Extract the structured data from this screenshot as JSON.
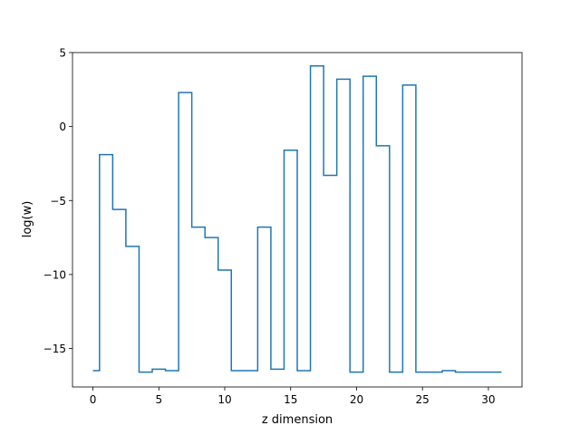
{
  "chart_data": {
    "type": "line",
    "drawstyle": "steps-mid",
    "xlabel": "z dimension",
    "ylabel": "log(w)",
    "xlim": [
      -1.55,
      32.55
    ],
    "ylim": [
      -17.6,
      5.0
    ],
    "xticks": [
      0,
      5,
      10,
      15,
      20,
      25,
      30
    ],
    "yticks": [
      5,
      0,
      -5,
      -10,
      -15
    ],
    "ytick_labels": [
      "5",
      "0",
      "−5",
      "−10",
      "−15"
    ],
    "grid": false,
    "legend": "none",
    "colors": {
      "line": "#1f77b4",
      "axes": "#000000",
      "background": "#ffffff"
    },
    "x": [
      0,
      1,
      2,
      3,
      4,
      5,
      6,
      7,
      8,
      9,
      10,
      11,
      12,
      13,
      14,
      15,
      16,
      17,
      18,
      19,
      20,
      21,
      22,
      23,
      24,
      25,
      26,
      27,
      28,
      29,
      30,
      31
    ],
    "values": [
      -16.5,
      -1.9,
      -5.6,
      -8.1,
      -16.6,
      -16.4,
      -16.5,
      2.3,
      -6.8,
      -7.5,
      -9.7,
      -16.5,
      -16.5,
      -6.8,
      -16.4,
      -1.6,
      -16.5,
      4.1,
      -3.3,
      3.2,
      -16.6,
      3.4,
      -1.3,
      -16.6,
      2.8,
      -16.6,
      -16.6,
      -16.5,
      -16.6,
      -16.6,
      -16.6,
      -16.6
    ]
  }
}
